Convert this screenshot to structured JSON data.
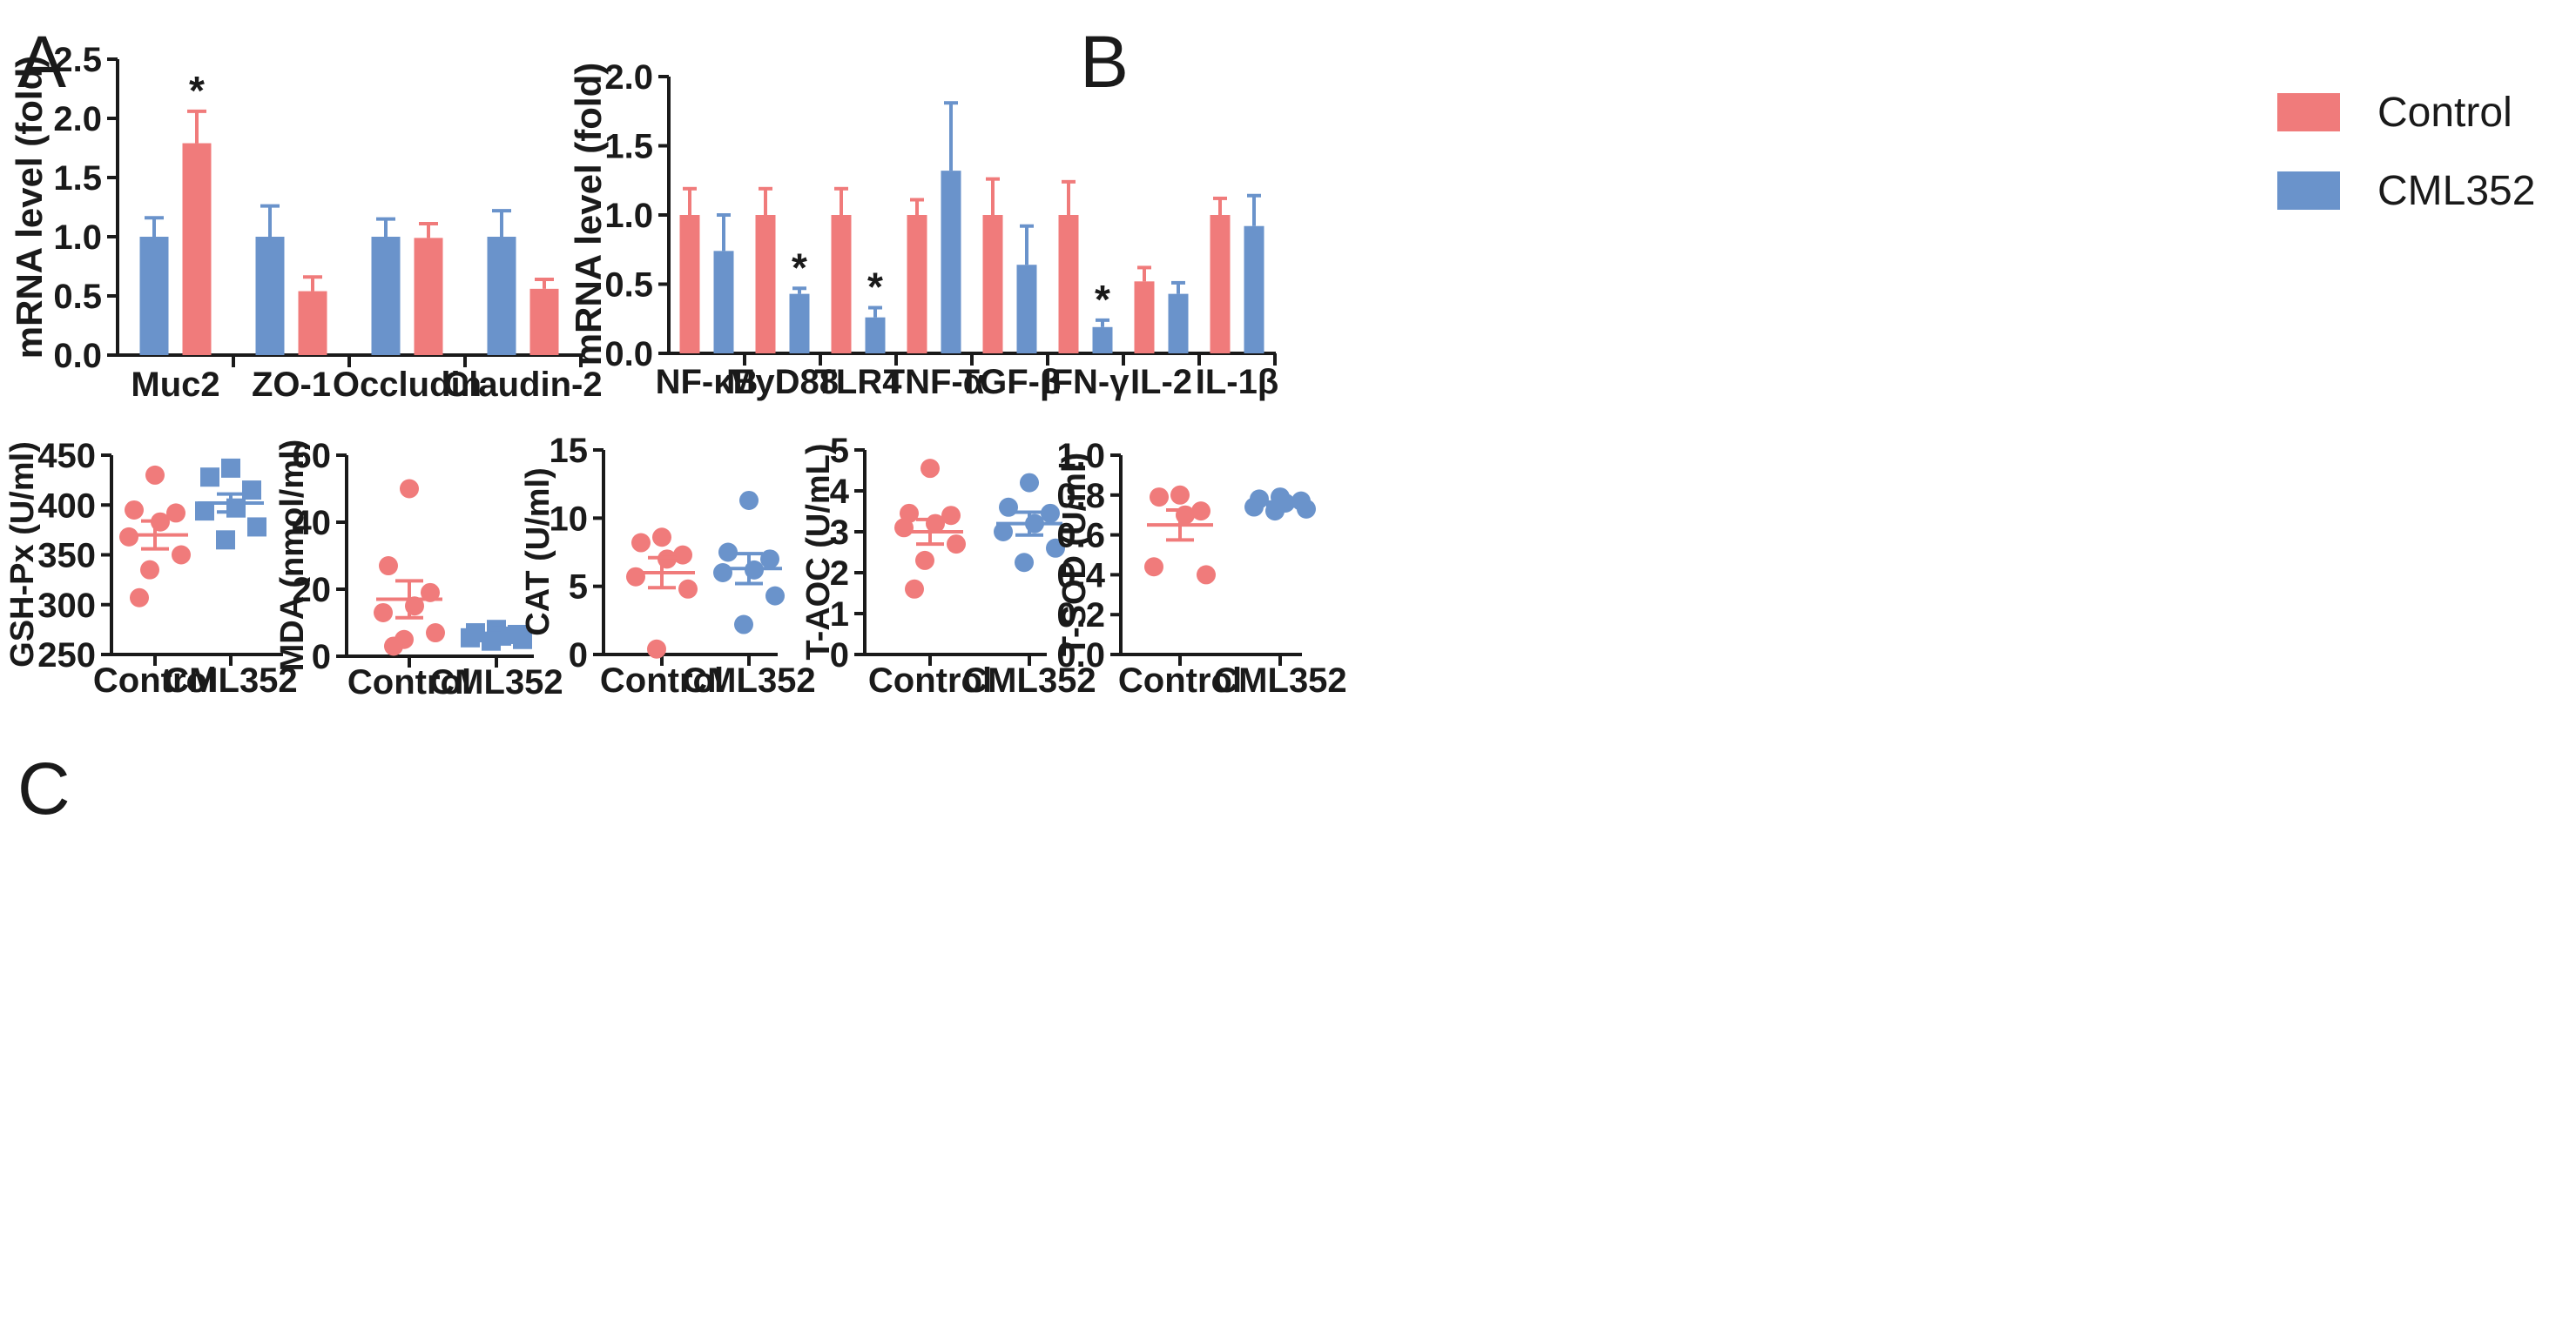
{
  "colors": {
    "control": "#f07b7b",
    "cml352": "#6a93cb",
    "axis": "#1a1a1a"
  },
  "legend": [
    {
      "key": "control",
      "label": "Control"
    },
    {
      "key": "cml352",
      "label": "CML352"
    }
  ],
  "chart_data": [
    {
      "panel": "A",
      "type": "bar",
      "ylabel": "mRNA level (fold)",
      "ylim": [
        0,
        2.5
      ],
      "yticks": [
        0.0,
        0.5,
        1.0,
        1.5,
        2.0,
        2.5
      ],
      "ytick_labels": [
        "0.0",
        "0.5",
        "1.0",
        "1.5",
        "2.0",
        "2.5"
      ],
      "categories": [
        "Muc2",
        "ZO-1",
        "Occludin",
        "Claudin-2"
      ],
      "series": [
        {
          "name": "CML352",
          "color_key": "cml352",
          "values": [
            1.0,
            1.0,
            1.0,
            1.0
          ],
          "errors": [
            0.16,
            0.26,
            0.15,
            0.22
          ]
        },
        {
          "name": "Control",
          "color_key": "control",
          "values": [
            1.79,
            0.54,
            0.99,
            0.56
          ],
          "errors": [
            0.27,
            0.12,
            0.12,
            0.08
          ]
        }
      ],
      "significance": [
        {
          "category": "Muc2",
          "series": "Control",
          "label": "*"
        }
      ]
    },
    {
      "panel": "B",
      "type": "bar",
      "ylabel": "mRNA level (fold)",
      "ylim": [
        0,
        2.0
      ],
      "yticks": [
        0.0,
        0.5,
        1.0,
        1.5,
        2.0
      ],
      "ytick_labels": [
        "0.0",
        "0.5",
        "1.0",
        "1.5",
        "2.0"
      ],
      "categories": [
        "NF-κB",
        "MyD88",
        "TLR4",
        "TNF-α",
        "TGF-β",
        "IFN-γ",
        "IL-2",
        "IL-1β"
      ],
      "series": [
        {
          "name": "Control",
          "color_key": "control",
          "values": [
            1.0,
            1.0,
            1.0,
            1.0,
            1.0,
            1.0,
            0.52,
            1.0
          ],
          "errors": [
            0.19,
            0.19,
            0.19,
            0.11,
            0.26,
            0.24,
            0.1,
            0.12
          ]
        },
        {
          "name": "CML352",
          "color_key": "cml352",
          "values": [
            0.74,
            0.43,
            0.26,
            1.32,
            0.64,
            0.19,
            0.43,
            0.92
          ],
          "errors": [
            0.26,
            0.04,
            0.07,
            0.49,
            0.28,
            0.05,
            0.08,
            0.22
          ]
        }
      ],
      "significance": [
        {
          "category": "MyD88",
          "series": "CML352",
          "label": "*"
        },
        {
          "category": "TLR4",
          "series": "CML352",
          "label": "*"
        },
        {
          "category": "IFN-γ",
          "series": "CML352",
          "label": "*"
        }
      ]
    },
    {
      "panel": "C1",
      "type": "scatter",
      "ylabel": "GSH-Px (U/ml)",
      "ylim": [
        250,
        450
      ],
      "yticks": [
        250,
        300,
        350,
        400,
        450
      ],
      "ytick_labels": [
        "250",
        "300",
        "350",
        "400",
        "450"
      ],
      "groups": [
        {
          "name": "Control",
          "color_key": "control",
          "marker": "circle",
          "points": [
            430,
            395,
            392,
            383,
            368,
            350,
            335,
            307
          ],
          "mean": 370,
          "sem": 14
        },
        {
          "name": "CML352",
          "color_key": "cml352",
          "marker": "square",
          "points": [
            437,
            428,
            415,
            397,
            394,
            378,
            365
          ],
          "mean": 402,
          "sem": 9
        }
      ]
    },
    {
      "panel": "C2",
      "type": "scatter",
      "ylabel": "MDA (nmol/ml)",
      "ylim": [
        0,
        60
      ],
      "yticks": [
        0,
        20,
        40,
        60
      ],
      "ytick_labels": [
        "0",
        "20",
        "40",
        "60"
      ],
      "groups": [
        {
          "name": "Control",
          "color_key": "control",
          "marker": "circle",
          "points": [
            50,
            27,
            19,
            15,
            13,
            7,
            5,
            3
          ],
          "mean": 17,
          "sem": 5.5
        },
        {
          "name": "CML352",
          "color_key": "cml352",
          "marker": "square",
          "points": [
            8,
            7,
            6.5,
            6,
            5.5,
            5,
            4.5
          ],
          "mean": 6,
          "sem": 0.6
        }
      ]
    },
    {
      "panel": "C3",
      "type": "scatter",
      "ylabel": "CAT (U/ml)",
      "ylim": [
        0,
        15
      ],
      "yticks": [
        0,
        5,
        10,
        15
      ],
      "ytick_labels": [
        "0",
        "5",
        "10",
        "15"
      ],
      "groups": [
        {
          "name": "Control",
          "color_key": "control",
          "marker": "circle",
          "points": [
            8.6,
            8.2,
            7.3,
            7.0,
            5.7,
            4.8,
            0.4
          ],
          "mean": 6.0,
          "sem": 1.1
        },
        {
          "name": "CML352",
          "color_key": "cml352",
          "marker": "circle",
          "points": [
            11.3,
            7.5,
            7.0,
            6.2,
            6.0,
            4.3,
            2.2
          ],
          "mean": 6.3,
          "sem": 1.1
        }
      ]
    },
    {
      "panel": "C4",
      "type": "scatter",
      "ylabel": "T-AOC (U/mL)",
      "ylim": [
        0,
        5
      ],
      "yticks": [
        0,
        1,
        2,
        3,
        4,
        5
      ],
      "ytick_labels": [
        "0",
        "1",
        "2",
        "3",
        "4",
        "5"
      ],
      "groups": [
        {
          "name": "Control",
          "color_key": "control",
          "marker": "circle",
          "points": [
            4.55,
            3.45,
            3.4,
            3.2,
            3.1,
            2.7,
            2.3,
            1.6
          ],
          "mean": 3.0,
          "sem": 0.3
        },
        {
          "name": "CML352",
          "color_key": "cml352",
          "marker": "circle",
          "points": [
            4.2,
            3.6,
            3.45,
            3.2,
            3.0,
            2.6,
            2.25
          ],
          "mean": 3.2,
          "sem": 0.28
        }
      ]
    },
    {
      "panel": "C5",
      "type": "scatter",
      "ylabel": "T-SOD (U/ml)",
      "ylim": [
        0,
        1.0
      ],
      "yticks": [
        0.0,
        0.2,
        0.4,
        0.6,
        0.8,
        1.0
      ],
      "ytick_labels": [
        "0.0",
        "0.2",
        "0.4",
        "0.6",
        "0.8",
        "1.0"
      ],
      "groups": [
        {
          "name": "Control",
          "color_key": "control",
          "marker": "circle",
          "points": [
            0.8,
            0.79,
            0.72,
            0.7,
            0.44,
            0.4
          ],
          "mean": 0.65,
          "sem": 0.075
        },
        {
          "name": "CML352",
          "color_key": "cml352",
          "marker": "circle",
          "points": [
            0.79,
            0.78,
            0.77,
            0.76,
            0.74,
            0.73,
            0.72
          ],
          "mean": 0.755,
          "sem": 0.01
        }
      ]
    }
  ],
  "scatter_xlabels": [
    "Control",
    "CML352"
  ],
  "panel_labels": {
    "A": "A",
    "B": "B",
    "C": "C"
  }
}
